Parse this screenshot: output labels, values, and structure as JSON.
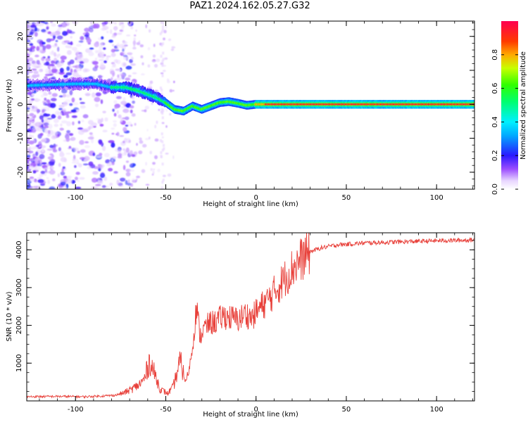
{
  "title": "PAZ1.2024.162.05.27.G32",
  "chart_data": [
    {
      "type": "heatmap",
      "xlabel": "Height of straight line (km)",
      "ylabel": "Frequency (Hz)",
      "xlim": [
        -127,
        121
      ],
      "ylim": [
        -25,
        24.5
      ],
      "x_ticks": [
        -100,
        -50,
        0,
        50,
        100
      ],
      "y_ticks": [
        -20,
        -10,
        0,
        10,
        20
      ],
      "colorbar": {
        "label": "Normalized spectral amplitude",
        "range": [
          0,
          1
        ],
        "ticks": [
          0.0,
          0.2,
          0.4,
          0.6,
          0.8
        ]
      },
      "ridge": [
        {
          "x": -127,
          "f": 5.5
        },
        {
          "x": -100,
          "f": 6
        },
        {
          "x": -88,
          "f": 6
        },
        {
          "x": -80,
          "f": 5
        },
        {
          "x": -72,
          "f": 5
        },
        {
          "x": -65,
          "f": 4
        },
        {
          "x": -60,
          "f": 3
        },
        {
          "x": -55,
          "f": 2
        },
        {
          "x": -50,
          "f": 0.5
        },
        {
          "x": -45,
          "f": -1.5
        },
        {
          "x": -40,
          "f": -2
        },
        {
          "x": -35,
          "f": -0.5
        },
        {
          "x": -30,
          "f": -1.5
        },
        {
          "x": -25,
          "f": -0.5
        },
        {
          "x": -20,
          "f": 0.5
        },
        {
          "x": -15,
          "f": 0.8
        },
        {
          "x": -10,
          "f": 0.3
        },
        {
          "x": -5,
          "f": -0.3
        },
        {
          "x": 0,
          "f": 0
        },
        {
          "x": 121,
          "f": 0
        }
      ]
    },
    {
      "type": "line",
      "xlabel": "Height of straight line (km)",
      "ylabel": "SNR (10 * v/v)",
      "xlim": [
        -127,
        121
      ],
      "ylim": [
        0,
        4450
      ],
      "x_ticks": [
        -100,
        -50,
        0,
        50,
        100
      ],
      "y_ticks": [
        1000,
        2000,
        3000,
        4000
      ],
      "series": [
        {
          "color": "#e8403a",
          "points": [
            [
              -127,
              110
            ],
            [
              -110,
              120
            ],
            [
              -95,
              110
            ],
            [
              -85,
              130
            ],
            [
              -78,
              150
            ],
            [
              -74,
              200
            ],
            [
              -70,
              280
            ],
            [
              -65,
              420
            ],
            [
              -62,
              560
            ],
            [
              -59,
              1050
            ],
            [
              -56,
              700
            ],
            [
              -53,
              300
            ],
            [
              -49,
              200
            ],
            [
              -46,
              350
            ],
            [
              -44,
              700
            ],
            [
              -42,
              1050
            ],
            [
              -39,
              500
            ],
            [
              -37,
              850
            ],
            [
              -35,
              1500
            ],
            [
              -33,
              2500
            ],
            [
              -31,
              1700
            ],
            [
              -29,
              1900
            ],
            [
              -26,
              2050
            ],
            [
              -22,
              2100
            ],
            [
              -18,
              2250
            ],
            [
              -14,
              2200
            ],
            [
              -10,
              2150
            ],
            [
              -6,
              2300
            ],
            [
              -2,
              2200
            ],
            [
              0,
              2350
            ],
            [
              4,
              2550
            ],
            [
              8,
              2750
            ],
            [
              12,
              3000
            ],
            [
              16,
              3250
            ],
            [
              20,
              3500
            ],
            [
              25,
              3750
            ],
            [
              30,
              3950
            ],
            [
              36,
              4050
            ],
            [
              45,
              4130
            ],
            [
              60,
              4180
            ],
            [
              80,
              4210
            ],
            [
              100,
              4240
            ],
            [
              121,
              4260
            ]
          ]
        }
      ]
    }
  ]
}
